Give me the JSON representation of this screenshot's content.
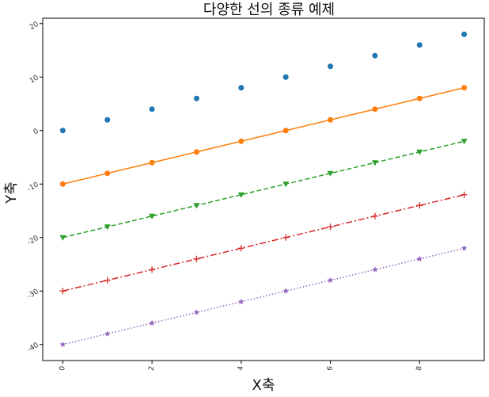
{
  "chart_data": {
    "type": "line",
    "title": "다양한 선의 종류 예제",
    "xlabel": "X축",
    "ylabel": "Y축",
    "xlim": [
      -0.45,
      9.45
    ],
    "ylim": [
      -43,
      21
    ],
    "grid": false,
    "x": [
      0,
      1,
      2,
      3,
      4,
      5,
      6,
      7,
      8,
      9
    ],
    "xticks": [
      0,
      2,
      4,
      6,
      8
    ],
    "yticks": [
      -40,
      -30,
      -20,
      -10,
      0,
      10,
      20
    ],
    "series": [
      {
        "values": [
          0,
          2,
          4,
          6,
          8,
          10,
          12,
          14,
          16,
          18
        ],
        "color": "#1f77b4",
        "line_style": "none",
        "marker": "circle"
      },
      {
        "values": [
          -10,
          -8,
          -6,
          -4,
          -2,
          0,
          2,
          4,
          6,
          8
        ],
        "color": "#ff7f0e",
        "line_style": "solid",
        "marker": "circle"
      },
      {
        "values": [
          -20,
          -18,
          -16,
          -14,
          -12,
          -10,
          -8,
          -6,
          -4,
          -2
        ],
        "color": "#2ca02c",
        "line_style": "dashed",
        "marker": "triangle-down"
      },
      {
        "values": [
          -30,
          -28,
          -26,
          -24,
          -22,
          -20,
          -18,
          -16,
          -14,
          -12
        ],
        "color": "#d62728",
        "line_style": "dashdot",
        "marker": "plus"
      },
      {
        "values": [
          -40,
          -38,
          -36,
          -34,
          -32,
          -30,
          -28,
          -26,
          -24,
          -22
        ],
        "color": "#9467bd",
        "line_style": "dotted",
        "marker": "star"
      }
    ]
  }
}
